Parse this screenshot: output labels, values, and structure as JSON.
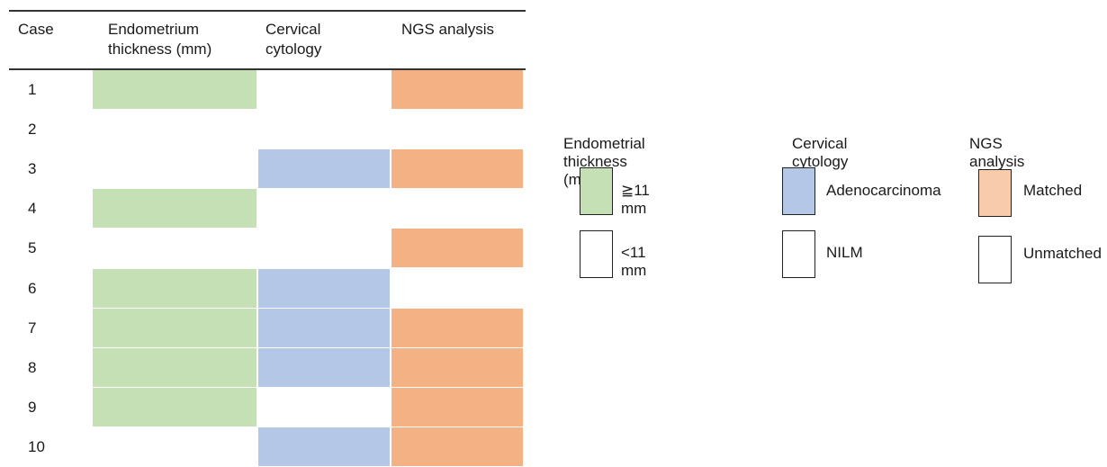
{
  "table": {
    "headers": {
      "case": "Case",
      "endometrium_line1": "Endometrium",
      "endometrium_line2": "thickness (mm)",
      "cervical_line1": "Cervical",
      "cervical_line2": "cytology",
      "ngs": "NGS analysis"
    },
    "rows": [
      {
        "case": "1",
        "endometrium": "≧11 mm",
        "cervical": "NILM",
        "ngs": "Matched"
      },
      {
        "case": "2",
        "endometrium": "<11 mm",
        "cervical": "NILM",
        "ngs": "Unmatched"
      },
      {
        "case": "3",
        "endometrium": "<11 mm",
        "cervical": "Adenocarcinoma",
        "ngs": "Matched"
      },
      {
        "case": "4",
        "endometrium": "≧11 mm",
        "cervical": "NILM",
        "ngs": "Unmatched"
      },
      {
        "case": "5",
        "endometrium": "<11 mm",
        "cervical": "NILM",
        "ngs": "Matched"
      },
      {
        "case": "6",
        "endometrium": "≧11 mm",
        "cervical": "Adenocarcinoma",
        "ngs": "Unmatched"
      },
      {
        "case": "7",
        "endometrium": "≧11 mm",
        "cervical": "Adenocarcinoma",
        "ngs": "Matched"
      },
      {
        "case": "8",
        "endometrium": "≧11 mm",
        "cervical": "Adenocarcinoma",
        "ngs": "Matched"
      },
      {
        "case": "9",
        "endometrium": "≧11 mm",
        "cervical": "NILM",
        "ngs": "Matched"
      },
      {
        "case": "10",
        "endometrium": "<11 mm",
        "cervical": "Adenocarcinoma",
        "ngs": "Matched"
      }
    ]
  },
  "legend": {
    "endometrial": {
      "title": "Endometrial thickness (mm)",
      "positive_label": "≧11 mm",
      "negative_label": "<11 mm"
    },
    "cervical": {
      "title": "Cervical cytology",
      "positive_label": "Adenocarcinoma",
      "negative_label": "NILM"
    },
    "ngs": {
      "title": "NGS analysis",
      "positive_label": "Matched",
      "negative_label": "Unmatched"
    }
  },
  "colors": {
    "endometrium_positive": "#c5e0b4",
    "cervical_positive": "#b4c7e7",
    "ngs_positive": "#f4b183",
    "ngs_legend_positive": "#f8cbad",
    "negative": "#ffffff",
    "rule": "#333333"
  }
}
